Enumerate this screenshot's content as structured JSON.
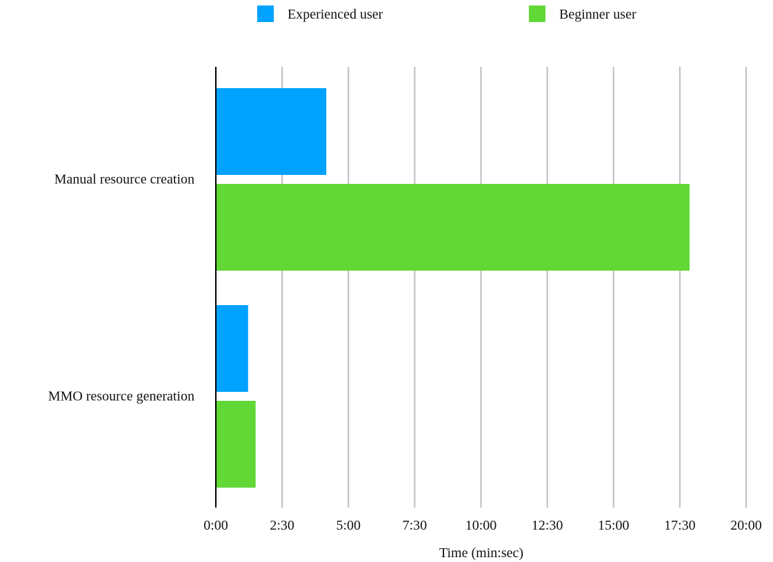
{
  "chart_data": {
    "type": "bar",
    "orientation": "horizontal",
    "categories": [
      "Manual resource creation",
      "MMO resource generation"
    ],
    "series": [
      {
        "name": "Experienced user",
        "color": "#00a2ff",
        "values": [
          250,
          73
        ]
      },
      {
        "name": "Beginner user",
        "color": "#61d836",
        "values": [
          1072,
          90
        ]
      }
    ],
    "x_ticks": [
      {
        "value": 0,
        "label": "0:00"
      },
      {
        "value": 150,
        "label": "2:30"
      },
      {
        "value": 300,
        "label": "5:00"
      },
      {
        "value": 450,
        "label": "7:30"
      },
      {
        "value": 600,
        "label": "10:00"
      },
      {
        "value": 750,
        "label": "12:30"
      },
      {
        "value": 900,
        "label": "15:00"
      },
      {
        "value": 1050,
        "label": "17:30"
      },
      {
        "value": 1200,
        "label": "20:00"
      }
    ],
    "xlim": [
      0,
      1200
    ],
    "xlabel": "Time (min:sec)",
    "x_unit": "seconds",
    "grid": "vertical",
    "legend_position": "top-center"
  }
}
